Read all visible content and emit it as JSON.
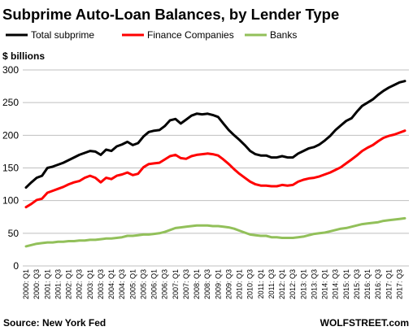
{
  "chart_data": {
    "type": "line",
    "title": "Subprime Auto-Loan Balances, by Lender Type",
    "ylabel": "$ billions",
    "ylim": [
      0,
      300
    ],
    "yticks": [
      0,
      50,
      100,
      150,
      200,
      250,
      300
    ],
    "grid": true,
    "legend_position": "top",
    "source": "Source: New York Fed",
    "watermark": "WOLFSTREET.com",
    "x_labels": [
      "2000: Q1",
      "2000: Q3",
      "2001: Q1",
      "2001: Q3",
      "2002: Q1",
      "2002: Q3",
      "2003: Q1",
      "2003: Q3",
      "2004: Q1",
      "2004: Q3",
      "2005: Q1",
      "2005: Q3",
      "2006: Q1",
      "2006: Q3",
      "2007: Q1",
      "2007: Q3",
      "2008: Q1",
      "2008: Q3",
      "2009: Q1",
      "2009: Q3",
      "2010: Q1",
      "2010: Q3",
      "2011: Q1",
      "2011: Q3",
      "2012: Q1",
      "2012: Q3",
      "2013: Q1",
      "2013: Q3",
      "2014: Q1",
      "2014: Q3",
      "2015: Q1",
      "2015: Q3",
      "2016: Q1",
      "2016: Q3",
      "2017: Q1",
      "2017: Q3"
    ],
    "series": [
      {
        "name": "Total subprime",
        "color": "#000000",
        "values": [
          120,
          128,
          135,
          138,
          150,
          152,
          155,
          158,
          162,
          166,
          170,
          173,
          176,
          175,
          170,
          178,
          176,
          183,
          186,
          190,
          185,
          188,
          198,
          205,
          207,
          208,
          214,
          223,
          225,
          218,
          224,
          230,
          233,
          232,
          233,
          231,
          228,
          218,
          208,
          200,
          193,
          185,
          176,
          171,
          169,
          169,
          166,
          166,
          168,
          166,
          166,
          172,
          176,
          180,
          182,
          186,
          192,
          199,
          208,
          215,
          222,
          226,
          236,
          245,
          250,
          255,
          262,
          268,
          273,
          277,
          281,
          283
        ]
      },
      {
        "name": "Finance Companies",
        "color": "#ff0000",
        "values": [
          90,
          95,
          101,
          103,
          112,
          115,
          118,
          121,
          125,
          128,
          130,
          135,
          138,
          135,
          128,
          135,
          133,
          138,
          140,
          143,
          139,
          141,
          151,
          156,
          157,
          158,
          163,
          168,
          170,
          165,
          164,
          168,
          170,
          171,
          172,
          171,
          169,
          163,
          156,
          148,
          141,
          135,
          129,
          125,
          123,
          123,
          122,
          122,
          124,
          123,
          124,
          129,
          132,
          134,
          135,
          137,
          140,
          143,
          147,
          151,
          157,
          163,
          169,
          176,
          181,
          185,
          191,
          196,
          199,
          201,
          204,
          207
        ]
      },
      {
        "name": "Banks",
        "color": "#92c05a",
        "values": [
          30,
          32,
          34,
          35,
          36,
          36,
          37,
          37,
          38,
          38,
          39,
          39,
          40,
          40,
          41,
          42,
          42,
          43,
          44,
          46,
          46,
          47,
          48,
          48,
          49,
          50,
          52,
          55,
          58,
          59,
          60,
          61,
          62,
          62,
          62,
          61,
          61,
          60,
          59,
          57,
          54,
          51,
          48,
          47,
          46,
          46,
          44,
          44,
          43,
          43,
          43,
          44,
          45,
          47,
          49,
          50,
          51,
          53,
          55,
          57,
          58,
          60,
          62,
          64,
          65,
          66,
          67,
          69,
          70,
          71,
          72,
          73
        ]
      }
    ]
  }
}
